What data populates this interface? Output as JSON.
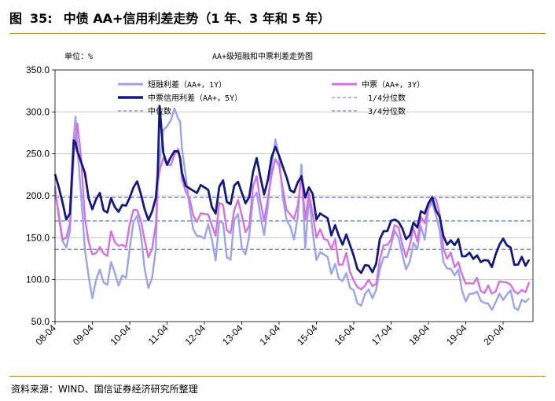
{
  "figure": {
    "label": "图",
    "number": "35:",
    "title": "中债 AA+信用利差走势（1 年、3 年和 5 年）",
    "source": "资料来源：WIND、国信证券经济研究所整理"
  },
  "chart_data": {
    "type": "line",
    "title": "AA+级短融和中票利差走势图",
    "unit_label": "单位：%",
    "xlabel": "",
    "ylabel": "",
    "ylim": [
      50,
      350
    ],
    "y_ticks": [
      "50.0",
      "100.0",
      "150.0",
      "200.0",
      "250.0",
      "300.0",
      "350.0"
    ],
    "x_range": [
      0,
      12.8
    ],
    "x_ticks": [
      {
        "x": 0,
        "label": "08-04"
      },
      {
        "x": 1,
        "label": "09-04"
      },
      {
        "x": 2,
        "label": "10-04"
      },
      {
        "x": 3,
        "label": "11-04"
      },
      {
        "x": 4,
        "label": "12-04"
      },
      {
        "x": 5,
        "label": "13-04"
      },
      {
        "x": 6,
        "label": "14-04"
      },
      {
        "x": 7,
        "label": "15-04"
      },
      {
        "x": 8,
        "label": "16-04"
      },
      {
        "x": 9,
        "label": "17-04"
      },
      {
        "x": 10,
        "label": "18-04"
      },
      {
        "x": 11,
        "label": "19-04"
      },
      {
        "x": 12,
        "label": "20-04"
      }
    ],
    "grid": "horizontal",
    "legend_position": "top",
    "reference_lines": [
      {
        "name": "1/4分位数",
        "value": 136,
        "color": "#5b6fd6"
      },
      {
        "name": "中位数",
        "value": 170,
        "color": "#5b6fd6"
      },
      {
        "name": "3/4分位数",
        "value": 198,
        "color": "#5b6fd6"
      }
    ],
    "series": [
      {
        "name": "短融利差（AA+，1Y）",
        "color": "#9aa3f0",
        "width": 2.4,
        "x": [
          0,
          0.1,
          0.2,
          0.3,
          0.4,
          0.5,
          0.55,
          0.6,
          0.7,
          0.8,
          0.9,
          1.0,
          1.1,
          1.2,
          1.3,
          1.4,
          1.5,
          1.6,
          1.7,
          1.8,
          1.9,
          2.0,
          2.1,
          2.2,
          2.3,
          2.4,
          2.5,
          2.6,
          2.7,
          2.75,
          2.8,
          2.9,
          3.0,
          3.1,
          3.2,
          3.3,
          3.35,
          3.4,
          3.5,
          3.6,
          3.7,
          3.8,
          3.9,
          4.0,
          4.1,
          4.2,
          4.3,
          4.4,
          4.5,
          4.6,
          4.7,
          4.8,
          4.9,
          5.0,
          5.1,
          5.2,
          5.3,
          5.4,
          5.5,
          5.6,
          5.7,
          5.8,
          5.9,
          6.0,
          6.1,
          6.2,
          6.3,
          6.4,
          6.5,
          6.6,
          6.7,
          6.8,
          6.9,
          7.0,
          7.1,
          7.2,
          7.3,
          7.4,
          7.5,
          7.6,
          7.7,
          7.8,
          7.9,
          8.0,
          8.1,
          8.2,
          8.3,
          8.4,
          8.5,
          8.6,
          8.7,
          8.8,
          8.9,
          9.0,
          9.1,
          9.2,
          9.3,
          9.4,
          9.5,
          9.6,
          9.7,
          9.8,
          9.9,
          10.0,
          10.1,
          10.2,
          10.3,
          10.4,
          10.5,
          10.6,
          10.7,
          10.8,
          10.9,
          11.0,
          11.1,
          11.2,
          11.3,
          11.4,
          11.5,
          11.6,
          11.7,
          11.8,
          11.9,
          12.0,
          12.1,
          12.2,
          12.3,
          12.4,
          12.5,
          12.6,
          12.7
        ],
        "y": [
          215,
          175,
          145,
          135,
          160,
          270,
          292,
          260,
          200,
          135,
          100,
          80,
          100,
          110,
          100,
          95,
          120,
          105,
          95,
          105,
          100,
          140,
          170,
          175,
          150,
          115,
          90,
          100,
          140,
          220,
          240,
          275,
          285,
          290,
          302,
          295,
          290,
          255,
          220,
          190,
          160,
          150,
          155,
          150,
          165,
          145,
          125,
          170,
          165,
          130,
          125,
          170,
          175,
          140,
          130,
          150,
          200,
          205,
          175,
          150,
          190,
          235,
          265,
          250,
          200,
          170,
          160,
          150,
          175,
          235,
          140,
          200,
          155,
          120,
          135,
          130,
          125,
          110,
          120,
          100,
          95,
          110,
          90,
          85,
          75,
          70,
          82,
          85,
          80,
          88,
          110,
          130,
          128,
          140,
          155,
          152,
          130,
          110,
          125,
          145,
          135,
          160,
          150,
          185,
          190,
          180,
          160,
          120,
          110,
          115,
          105,
          110,
          90,
          75,
          82,
          80,
          88,
          75,
          70,
          75,
          65,
          72,
          80,
          78,
          82,
          85,
          70,
          65,
          75,
          70,
          80
        ]
      },
      {
        "name": "中票（AA+，3Y）",
        "color": "#d66fe6",
        "width": 2.4,
        "x": [
          0,
          0.1,
          0.2,
          0.3,
          0.4,
          0.5,
          0.55,
          0.6,
          0.7,
          0.8,
          0.9,
          1.0,
          1.1,
          1.2,
          1.3,
          1.4,
          1.5,
          1.6,
          1.7,
          1.8,
          1.9,
          2.0,
          2.1,
          2.2,
          2.3,
          2.4,
          2.5,
          2.6,
          2.7,
          2.75,
          2.8,
          2.9,
          3.0,
          3.1,
          3.2,
          3.3,
          3.35,
          3.4,
          3.5,
          3.6,
          3.7,
          3.8,
          3.9,
          4.0,
          4.1,
          4.2,
          4.3,
          4.4,
          4.5,
          4.6,
          4.7,
          4.8,
          4.9,
          5.0,
          5.1,
          5.2,
          5.3,
          5.4,
          5.5,
          5.6,
          5.7,
          5.8,
          5.9,
          6.0,
          6.1,
          6.2,
          6.3,
          6.4,
          6.5,
          6.6,
          6.7,
          6.8,
          6.9,
          7.0,
          7.1,
          7.2,
          7.3,
          7.4,
          7.5,
          7.6,
          7.7,
          7.8,
          7.9,
          8.0,
          8.1,
          8.2,
          8.3,
          8.4,
          8.5,
          8.6,
          8.7,
          8.8,
          8.9,
          9.0,
          9.1,
          9.2,
          9.3,
          9.4,
          9.5,
          9.6,
          9.7,
          9.8,
          9.9,
          10.0,
          10.1,
          10.2,
          10.3,
          10.4,
          10.5,
          10.6,
          10.7,
          10.8,
          10.9,
          11.0,
          11.1,
          11.2,
          11.3,
          11.4,
          11.5,
          11.6,
          11.7,
          11.8,
          11.9,
          12.0,
          12.1,
          12.2,
          12.3,
          12.4,
          12.5,
          12.6,
          12.7
        ],
        "y": [
          205,
          175,
          150,
          150,
          165,
          250,
          270,
          285,
          240,
          175,
          145,
          128,
          135,
          140,
          130,
          125,
          160,
          145,
          138,
          145,
          140,
          165,
          180,
          185,
          170,
          145,
          130,
          138,
          165,
          210,
          232,
          245,
          235,
          240,
          250,
          255,
          240,
          222,
          205,
          195,
          180,
          170,
          178,
          175,
          180,
          165,
          150,
          195,
          190,
          158,
          152,
          185,
          195,
          175,
          160,
          165,
          210,
          220,
          195,
          170,
          195,
          228,
          245,
          235,
          205,
          185,
          178,
          170,
          192,
          225,
          170,
          200,
          180,
          150,
          158,
          152,
          148,
          135,
          145,
          120,
          118,
          130,
          112,
          100,
          90,
          85,
          95,
          100,
          90,
          98,
          125,
          140,
          138,
          150,
          165,
          160,
          145,
          128,
          140,
          158,
          148,
          175,
          165,
          190,
          198,
          195,
          175,
          140,
          125,
          130,
          118,
          122,
          105,
          92,
          98,
          95,
          100,
          90,
          85,
          92,
          80,
          88,
          98,
          95,
          100,
          95,
          85,
          80,
          90,
          85,
          95
        ]
      },
      {
        "name": "中票信用利差（AA+，5Y）",
        "color": "#121a80",
        "width": 2.8,
        "x": [
          0,
          0.1,
          0.2,
          0.3,
          0.4,
          0.5,
          0.55,
          0.6,
          0.7,
          0.8,
          0.9,
          1.0,
          1.1,
          1.2,
          1.3,
          1.4,
          1.5,
          1.6,
          1.7,
          1.8,
          1.9,
          2.0,
          2.1,
          2.2,
          2.3,
          2.4,
          2.5,
          2.6,
          2.7,
          2.75,
          2.8,
          2.9,
          3.0,
          3.1,
          3.2,
          3.3,
          3.35,
          3.4,
          3.5,
          3.6,
          3.7,
          3.8,
          3.9,
          4.0,
          4.1,
          4.2,
          4.3,
          4.4,
          4.5,
          4.6,
          4.7,
          4.8,
          4.9,
          5.0,
          5.1,
          5.2,
          5.3,
          5.4,
          5.5,
          5.6,
          5.7,
          5.8,
          5.9,
          6.0,
          6.1,
          6.2,
          6.3,
          6.4,
          6.5,
          6.6,
          6.7,
          6.8,
          6.9,
          7.0,
          7.1,
          7.2,
          7.3,
          7.4,
          7.5,
          7.6,
          7.7,
          7.8,
          7.9,
          8.0,
          8.1,
          8.2,
          8.3,
          8.4,
          8.5,
          8.6,
          8.7,
          8.8,
          8.9,
          9.0,
          9.1,
          9.2,
          9.3,
          9.4,
          9.5,
          9.6,
          9.7,
          9.8,
          9.9,
          10.0,
          10.1,
          10.2,
          10.3,
          10.4,
          10.5,
          10.6,
          10.7,
          10.8,
          10.9,
          11.0,
          11.1,
          11.2,
          11.3,
          11.4,
          11.5,
          11.6,
          11.7,
          11.8,
          11.9,
          12.0,
          12.1,
          12.2,
          12.3,
          12.4,
          12.5,
          12.6,
          12.7
        ],
        "y": [
          228,
          210,
          190,
          175,
          180,
          265,
          260,
          255,
          240,
          225,
          200,
          185,
          195,
          200,
          185,
          180,
          195,
          190,
          182,
          188,
          185,
          200,
          210,
          215,
          205,
          185,
          170,
          178,
          200,
          225,
          305,
          255,
          238,
          245,
          250,
          255,
          245,
          225,
          215,
          210,
          205,
          200,
          215,
          210,
          205,
          190,
          180,
          210,
          215,
          195,
          190,
          210,
          220,
          205,
          190,
          195,
          230,
          245,
          220,
          205,
          220,
          245,
          255,
          250,
          235,
          220,
          210,
          205,
          215,
          220,
          200,
          210,
          200,
          175,
          180,
          175,
          170,
          155,
          165,
          150,
          145,
          155,
          140,
          125,
          115,
          108,
          115,
          120,
          110,
          118,
          145,
          160,
          158,
          168,
          175,
          170,
          160,
          145,
          155,
          168,
          160,
          185,
          180,
          190,
          195,
          185,
          175,
          150,
          145,
          148,
          140,
          145,
          130,
          128,
          130,
          128,
          130,
          120,
          120,
          125,
          115,
          128,
          145,
          150,
          140,
          135,
          120,
          118,
          125,
          120,
          125
        ]
      }
    ]
  }
}
